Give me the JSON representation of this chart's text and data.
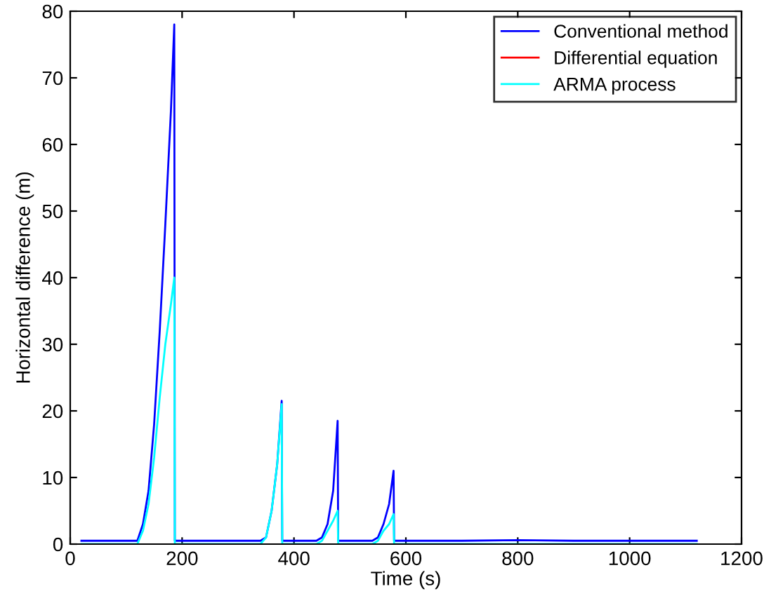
{
  "chart_data": {
    "type": "line",
    "xlabel": "Time (s)",
    "ylabel": "Horizontal difference (m)",
    "x": [
      20,
      60,
      100,
      120,
      130,
      140,
      150,
      160,
      170,
      180,
      186,
      187,
      200,
      250,
      300,
      340,
      350,
      360,
      370,
      378,
      379,
      400,
      440,
      450,
      460,
      470,
      478,
      479,
      500,
      540,
      550,
      560,
      570,
      578,
      579,
      600,
      700,
      800,
      900,
      1000,
      1120
    ],
    "series": [
      {
        "name": "Conventional method",
        "color": "#0000ff",
        "values": [
          0.5,
          0.5,
          0.5,
          0.5,
          3,
          8,
          18,
          32,
          48,
          65,
          78,
          0.5,
          0.5,
          0.5,
          0.5,
          0.5,
          1,
          5,
          12,
          21.5,
          0.5,
          0.5,
          0.5,
          1,
          3,
          8,
          18.5,
          0.5,
          0.5,
          0.5,
          1,
          3,
          6,
          11,
          0.5,
          0.5,
          0.5,
          0.6,
          0.5,
          0.5,
          0.5
        ]
      },
      {
        "name": "Differential equation",
        "color": "#ff0000",
        "values": [
          null,
          null,
          null,
          null,
          null,
          null,
          null,
          null,
          null,
          null,
          null,
          null,
          null,
          null,
          null,
          null,
          null,
          null,
          null,
          null,
          null,
          null,
          null,
          null,
          null,
          null,
          null,
          null,
          null,
          null,
          null,
          null,
          null,
          null,
          null,
          null,
          null,
          null,
          null,
          null,
          null
        ]
      },
      {
        "name": "ARMA process",
        "color": "#00ffff",
        "values": [
          0,
          0,
          0,
          0,
          2,
          6,
          13,
          22,
          30,
          36,
          40,
          0,
          0,
          0,
          0,
          0,
          1,
          5,
          12,
          21,
          0,
          0,
          0,
          0.5,
          2,
          3.5,
          5,
          0,
          0,
          0,
          0.5,
          2,
          3,
          4.5,
          0,
          0,
          0,
          0,
          0,
          0,
          0
        ]
      }
    ],
    "xlim": [
      0,
      1200
    ],
    "xticks": [
      0,
      200,
      400,
      600,
      800,
      1000,
      1200
    ],
    "ylim": [
      0,
      80
    ],
    "yticks": [
      0,
      10,
      20,
      30,
      40,
      50,
      60,
      70,
      80
    ],
    "grid": false,
    "legend": "top right",
    "line_style": "solid",
    "marker": "none"
  }
}
